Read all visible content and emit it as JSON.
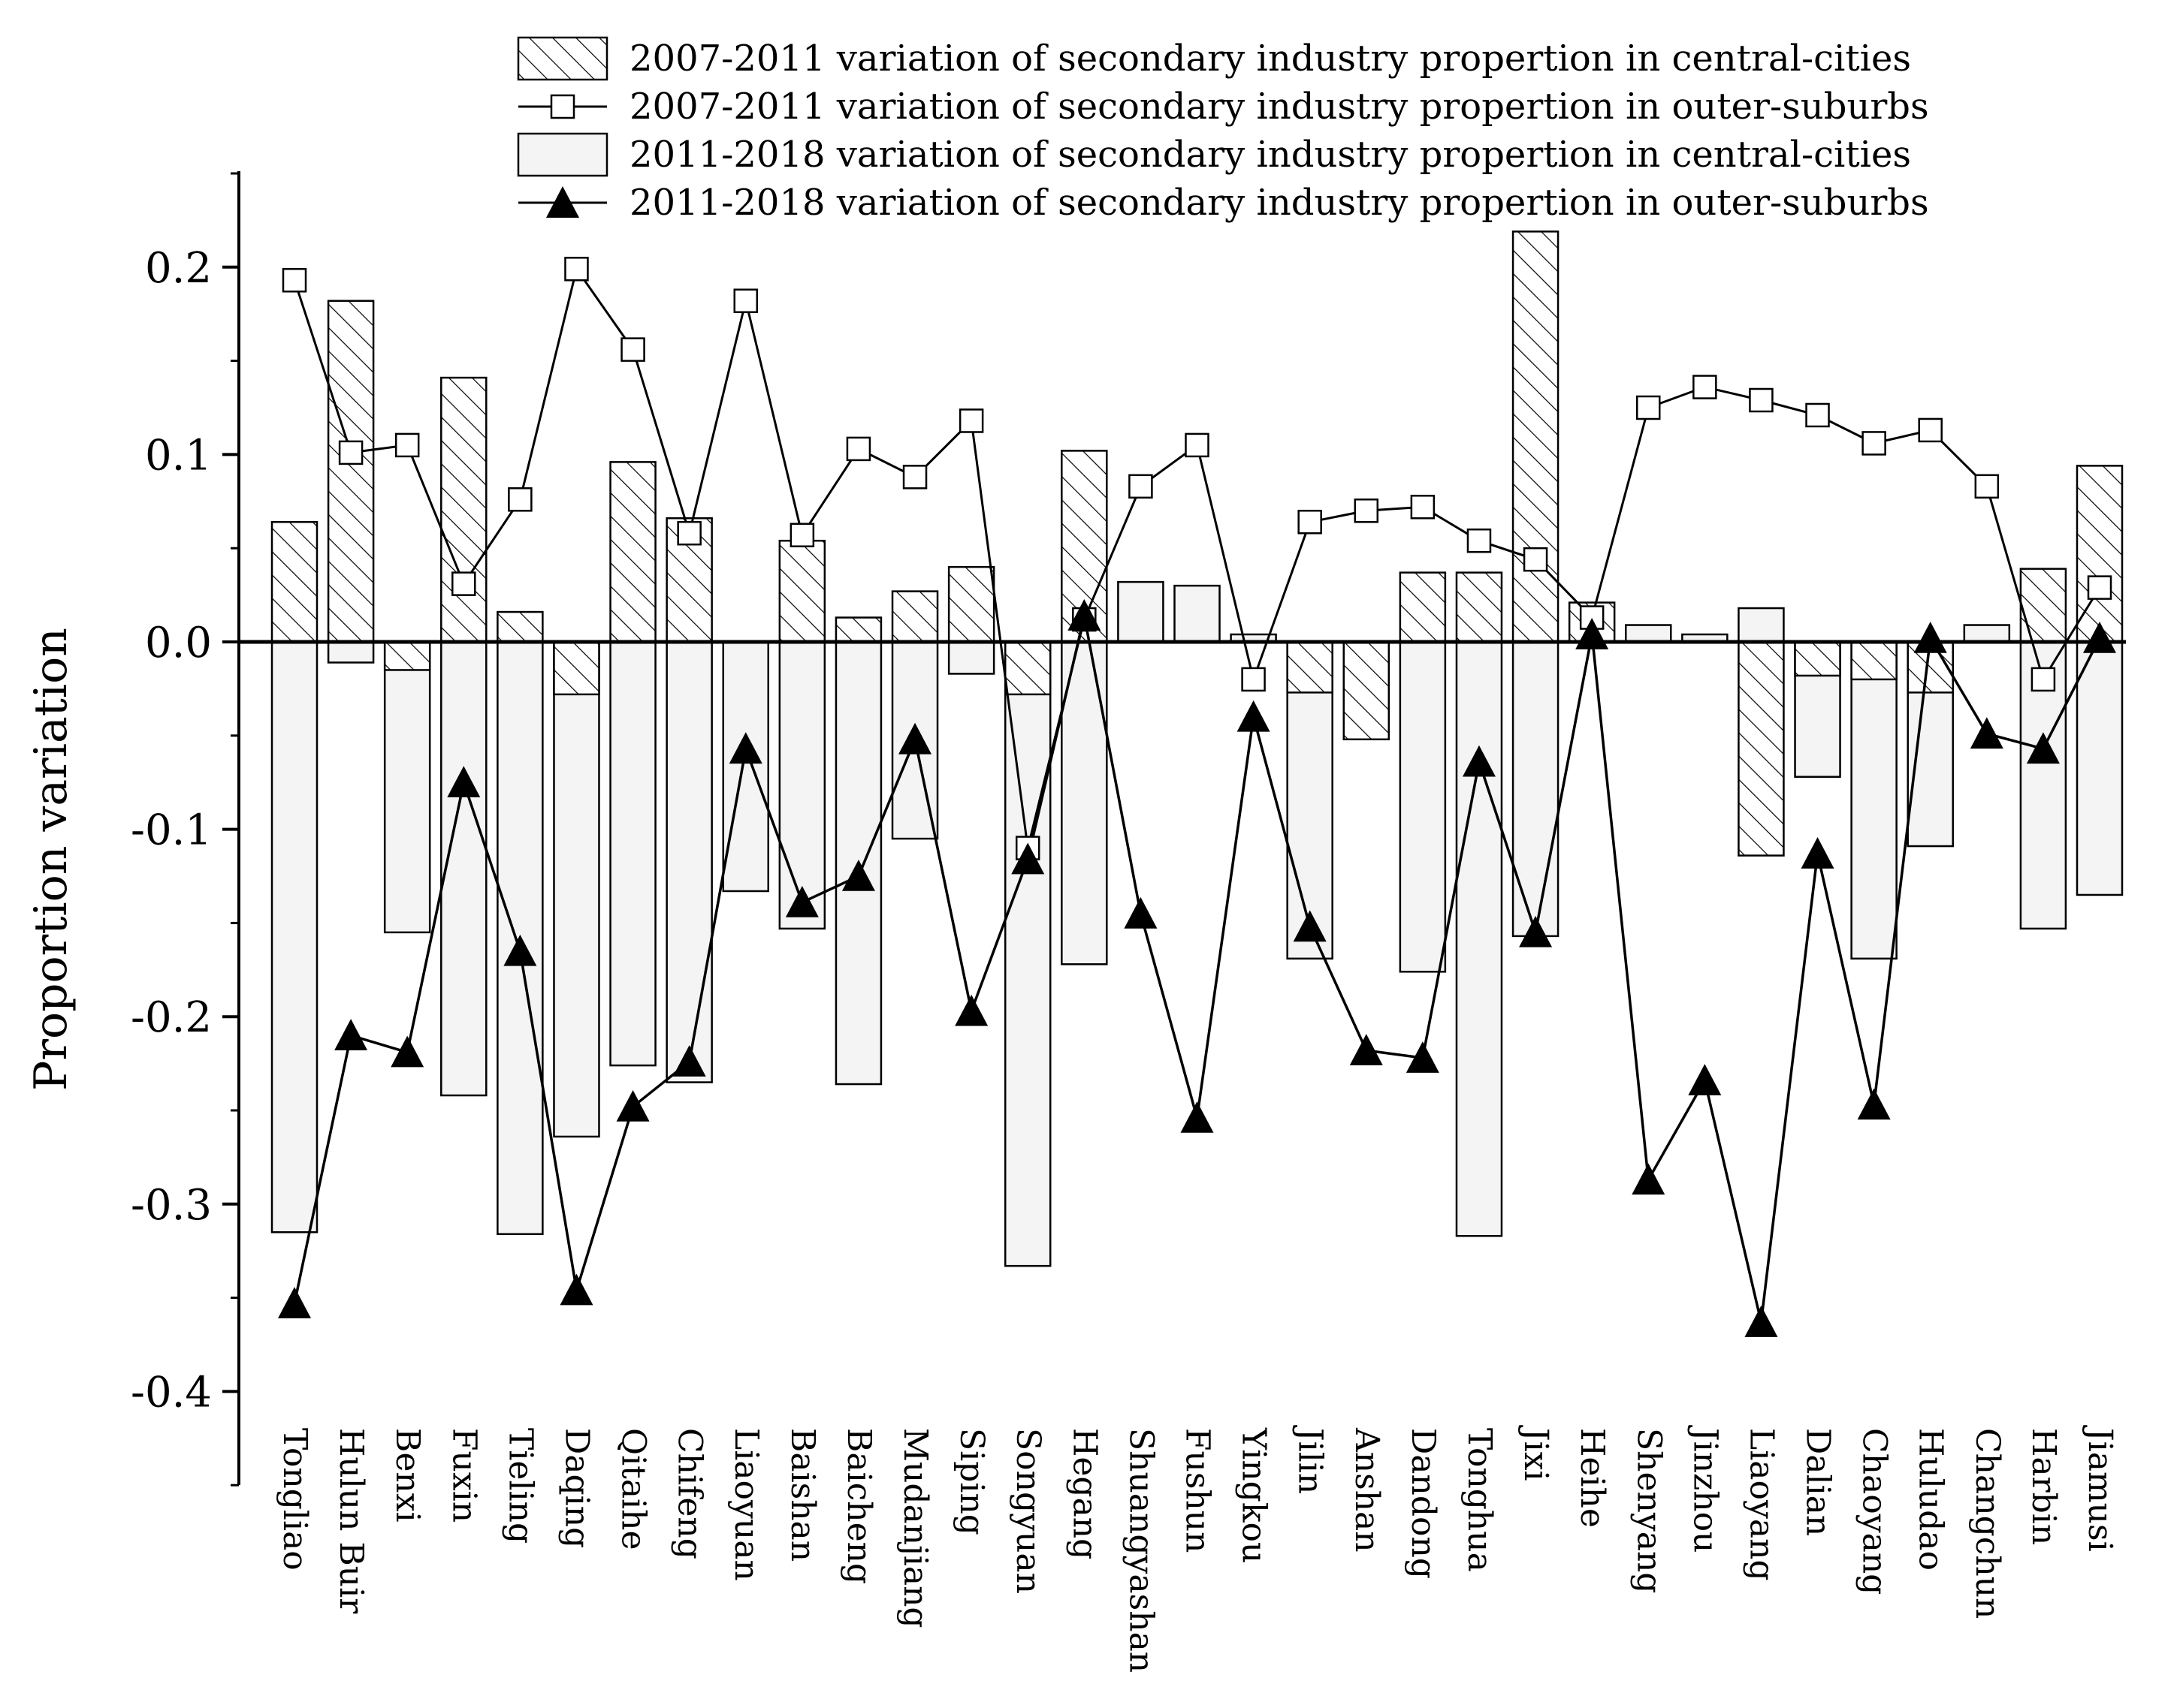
{
  "chart_data": {
    "type": "bar",
    "title": "",
    "xlabel": "",
    "ylabel": "Proportion variation",
    "ylim": [
      -0.45,
      0.25
    ],
    "yticks": [
      0.2,
      0.1,
      0.0,
      -0.1,
      -0.2,
      -0.3,
      -0.4
    ],
    "ytick_labels": [
      "0.2",
      "0.1",
      "0.0",
      "-0.1",
      "-0.2",
      "-0.3",
      "-0.4"
    ],
    "legend_position": "top-right",
    "categories": [
      "Tongliao",
      "Hulun Buir",
      "Benxi",
      "Fuxin",
      "Tieling",
      "Daqing",
      "Qitaihe",
      "Chifeng",
      "Liaoyuan",
      "Baishan",
      "Baicheng",
      "Mudanjiang",
      "Siping",
      "Songyuan",
      "Hegang",
      "Shuangyashan",
      "Fushun",
      "Yingkou",
      "Jilin",
      "Anshan",
      "Dandong",
      "Tonghua",
      "Jixi",
      "Heihe",
      "Shenyang",
      "Jinzhou",
      "Liaoyang",
      "Dalian",
      "Chaoyang",
      "Huludao",
      "Changchun",
      "Harbin",
      "Jiamusi"
    ],
    "series": [
      {
        "name": "2007-2011 variation of secondary industry propertion in central-cities",
        "kind": "bar",
        "pattern": "hatched",
        "values": [
          0.064,
          0.182,
          -0.015,
          0.141,
          0.016,
          -0.028,
          0.096,
          0.066,
          0.0,
          0.054,
          0.013,
          0.027,
          0.04,
          -0.028,
          0.102,
          0.0,
          0.0,
          0.0,
          -0.027,
          -0.052,
          0.037,
          0.037,
          0.219,
          0.021,
          0.0,
          0.0,
          -0.114,
          -0.018,
          -0.02,
          -0.027,
          0.0,
          0.039,
          0.094
        ]
      },
      {
        "name": "2007-2011 variation of secondary industry propertion in outer-suburbs",
        "kind": "line",
        "marker": "open-square",
        "values": [
          0.193,
          0.101,
          0.105,
          0.031,
          0.076,
          0.199,
          0.156,
          0.058,
          0.182,
          0.057,
          0.103,
          0.088,
          0.118,
          -0.11,
          0.012,
          0.083,
          0.105,
          -0.02,
          0.064,
          0.07,
          0.072,
          0.054,
          0.044,
          0.013,
          0.125,
          0.136,
          0.129,
          0.121,
          0.106,
          0.113,
          0.083,
          -0.02,
          0.029
        ]
      },
      {
        "name": "2011-2018 variation of secondary industry propertion in central-cities",
        "kind": "bar",
        "pattern": "light-fill",
        "values": [
          -0.315,
          -0.011,
          -0.155,
          -0.242,
          -0.316,
          -0.264,
          -0.226,
          -0.235,
          -0.133,
          -0.153,
          -0.236,
          -0.105,
          -0.017,
          -0.333,
          -0.172,
          0.032,
          0.03,
          0.004,
          -0.169,
          -0.04,
          -0.176,
          -0.317,
          -0.157,
          0.0,
          0.009,
          0.004,
          0.018,
          -0.072,
          -0.169,
          -0.109,
          0.009,
          -0.153,
          -0.135
        ]
      },
      {
        "name": "2011-2018 variation of secondary industry propertion in outer-suburbs",
        "kind": "line",
        "marker": "filled-triangle",
        "values": [
          -0.353,
          -0.21,
          -0.219,
          -0.075,
          -0.165,
          -0.346,
          -0.248,
          -0.224,
          -0.057,
          -0.139,
          -0.125,
          -0.052,
          -0.197,
          -0.116,
          0.014,
          -0.145,
          -0.254,
          -0.04,
          -0.152,
          -0.218,
          -0.222,
          -0.064,
          -0.155,
          0.004,
          -0.287,
          -0.234,
          -0.363,
          -0.113,
          -0.247,
          0.002,
          -0.049,
          -0.057,
          0.002
        ]
      }
    ]
  }
}
